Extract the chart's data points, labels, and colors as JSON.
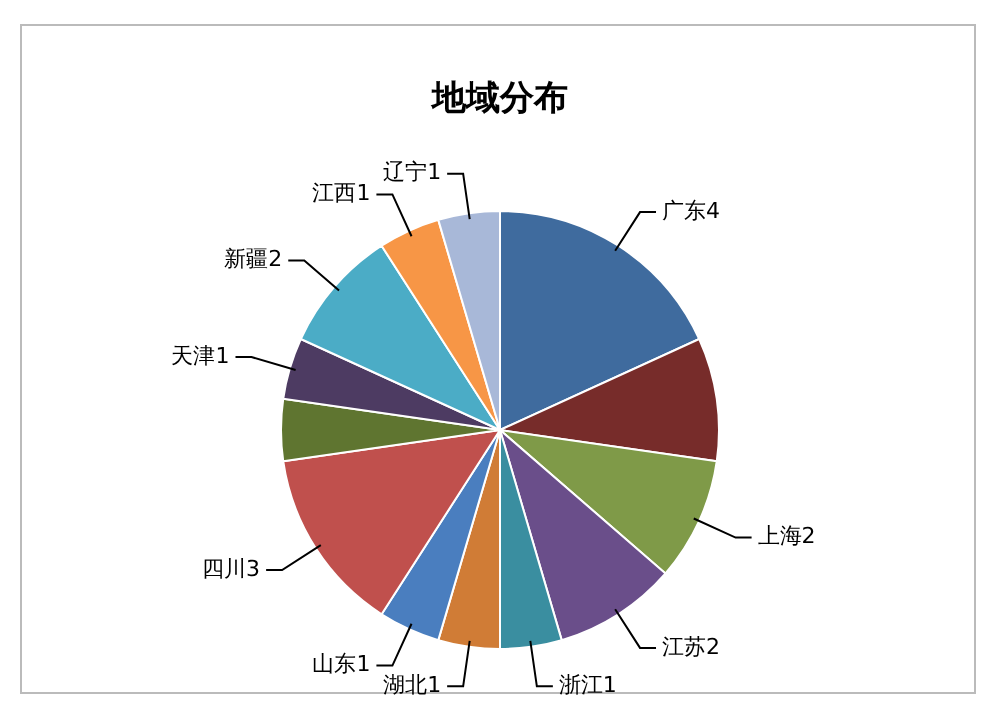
{
  "chart_data": {
    "type": "pie",
    "title": "地域分布",
    "categories": [
      "广东",
      null,
      "上海",
      "江苏",
      "浙江",
      "湖北",
      "山东",
      "四川",
      null,
      "天津",
      "新疆",
      "江西",
      "辽宁"
    ],
    "values": [
      4,
      2,
      2,
      2,
      1,
      1,
      1,
      3,
      1,
      1,
      2,
      1,
      1
    ],
    "value_labels": [
      "4",
      null,
      "2",
      "2",
      "1",
      "1",
      "1",
      "3",
      null,
      "1",
      "2",
      "1",
      "1"
    ],
    "colors": [
      "#3f6b9e",
      "#772c2a",
      "#7f9a48",
      "#6a4e8a",
      "#3a8ea0",
      "#d07c36",
      "#4a7ebf",
      "#c0504d",
      "#5f7530",
      "#4d3b62",
      "#4bacc6",
      "#f79646",
      "#a8b8d8"
    ],
    "legend": false
  }
}
